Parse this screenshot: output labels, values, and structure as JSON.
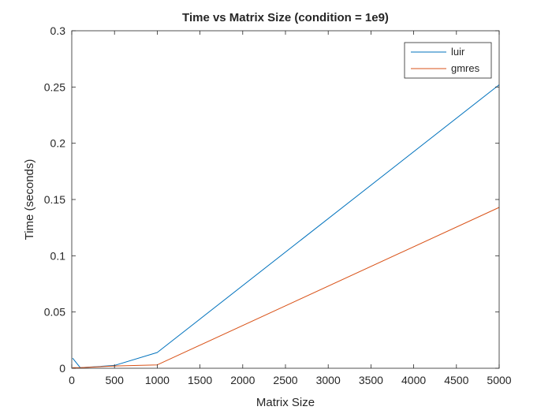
{
  "chart_data": {
    "type": "line",
    "title": "Time vs Matrix Size (condition = 1e9)",
    "xlabel": "Matrix Size",
    "ylabel": "Time (seconds)",
    "xlim": [
      0,
      5000
    ],
    "ylim": [
      0,
      0.3
    ],
    "xticks": [
      0,
      500,
      1000,
      1500,
      2000,
      2500,
      3000,
      3500,
      4000,
      4500,
      5000
    ],
    "xtick_labels": [
      "0",
      "500",
      "1000",
      "1500",
      "2000",
      "2500",
      "3000",
      "3500",
      "4000",
      "4500",
      "5000"
    ],
    "yticks": [
      0,
      0.05,
      0.1,
      0.15,
      0.2,
      0.25,
      0.3
    ],
    "ytick_labels": [
      "0",
      "0.05",
      "0.1",
      "0.15",
      "0.2",
      "0.25",
      "0.3"
    ],
    "grid": false,
    "legend_position": "top-right",
    "x": [
      10,
      100,
      500,
      1000,
      5000
    ],
    "series": [
      {
        "name": "luir",
        "color": "#0072BD",
        "values": [
          0.009,
          0.0005,
          0.0025,
          0.014,
          0.252
        ]
      },
      {
        "name": "gmres",
        "color": "#D95319",
        "values": [
          0.0005,
          0.0005,
          0.002,
          0.003,
          0.143
        ]
      }
    ]
  }
}
